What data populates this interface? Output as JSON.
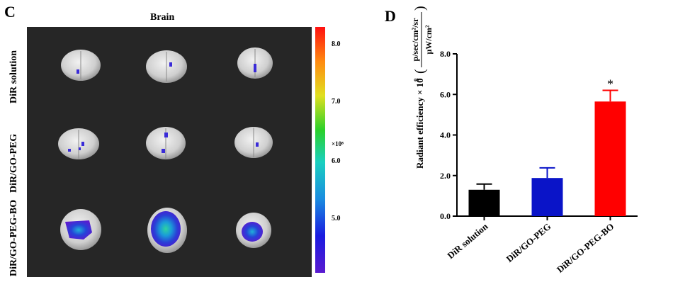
{
  "panel_c": {
    "letter": "C",
    "title": "Brain",
    "row_labels": [
      "DiR solution",
      "DiR/GO-PEG",
      "DiR/GO-PEG-BO"
    ],
    "colorbar": {
      "ticks": [
        "8.0",
        "7.0",
        "6.0",
        "5.0"
      ],
      "unit": "×10⁸"
    }
  },
  "panel_d": {
    "letter": "D"
  },
  "chart_data": {
    "type": "bar",
    "categories": [
      "DiR solution",
      "DiR/GO-PEG",
      "DiR/GO-PEG-BO"
    ],
    "values": [
      1.3,
      1.88,
      5.65
    ],
    "errors": [
      0.28,
      0.5,
      0.55
    ],
    "colors": [
      "#000000",
      "#0a14c8",
      "#ff0000"
    ],
    "annotations": [
      "",
      "",
      "*"
    ],
    "ylabel_prefix": "Radiant efficiency × 10",
    "ylabel_exponent": "8",
    "ylabel_numerator": "p/sec/cm²/sr",
    "ylabel_denominator": "μW/cm²",
    "ylim": [
      0,
      8
    ],
    "yticks": [
      "0.0",
      "2.0",
      "4.0",
      "6.0",
      "8.0"
    ],
    "ytick_values": [
      0,
      2,
      4,
      6,
      8
    ]
  }
}
